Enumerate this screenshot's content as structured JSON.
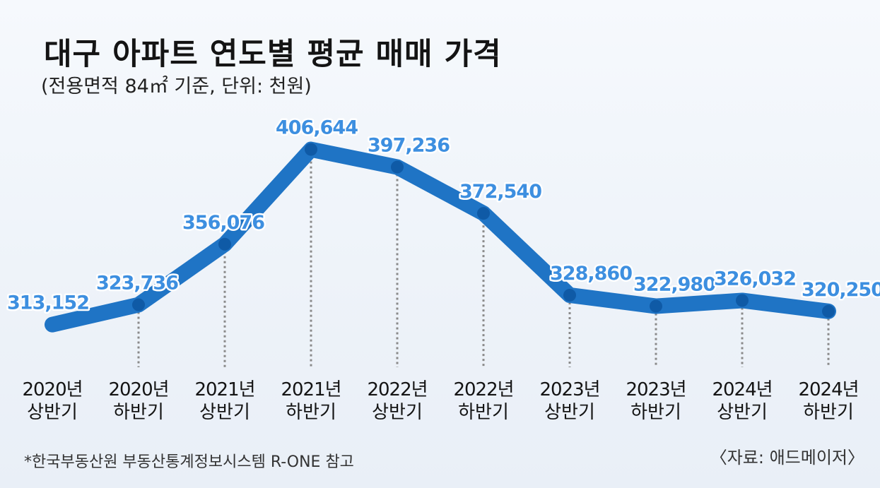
{
  "chart_data": {
    "type": "line",
    "title": "대구 아파트 연도별 평균 매매 가격",
    "subtitle": "(전용면적 84㎡ 기준, 단위: 천원)",
    "categories": [
      [
        "2020년",
        "상반기"
      ],
      [
        "2020년",
        "하반기"
      ],
      [
        "2021년",
        "상반기"
      ],
      [
        "2021년",
        "하반기"
      ],
      [
        "2022년",
        "상반기"
      ],
      [
        "2022년",
        "하반기"
      ],
      [
        "2023년",
        "상반기"
      ],
      [
        "2023년",
        "하반기"
      ],
      [
        "2024년",
        "상반기"
      ],
      [
        "2024년",
        "하반기"
      ]
    ],
    "series": [
      {
        "name": "평균 매매 가격",
        "values": [
          313152,
          323736,
          356076,
          406644,
          397236,
          372540,
          328860,
          322980,
          326032,
          320250
        ],
        "labels": [
          "313,152",
          "323,736",
          "356,076",
          "406,644",
          "397,236",
          "372,540",
          "328,860",
          "322,980",
          "326,032",
          "320,250"
        ]
      }
    ],
    "ylim": [
      280000,
      420000
    ],
    "xlabel": "",
    "ylabel": "",
    "grid": false,
    "legend": "none"
  },
  "footnote": "*한국부동산원 부동산통계정보시스템 R-ONE 참고",
  "source": "〈자료: 애드메이저〉",
  "colors": {
    "line": "#1f74c5",
    "marker": "#0f5aa6",
    "label_fill": "#3d8fe0",
    "label_stroke": "#ffffff",
    "drop_line": "#8a8a8a",
    "text": "#141414"
  }
}
